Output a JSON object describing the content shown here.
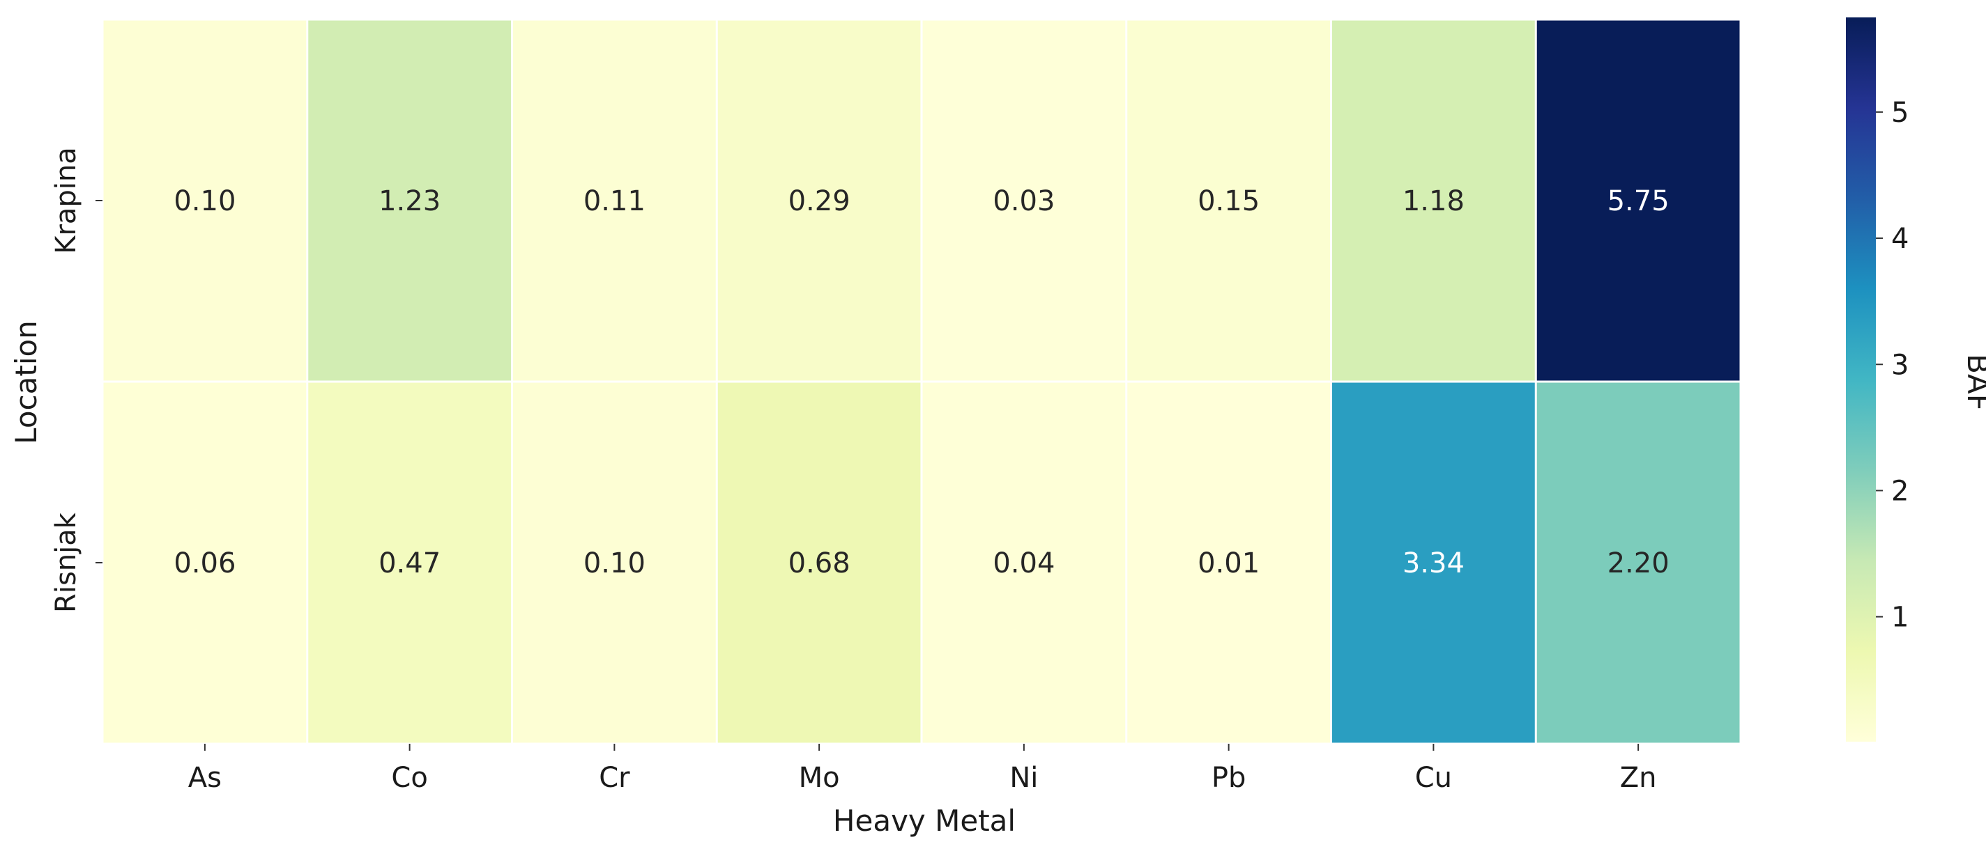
{
  "chart_data": {
    "type": "heatmap",
    "title": "",
    "xlabel": "Heavy Metal",
    "ylabel": "Location",
    "x_categories": [
      "As",
      "Co",
      "Cr",
      "Mo",
      "Ni",
      "Pb",
      "Cu",
      "Zn"
    ],
    "y_categories": [
      "Krapina",
      "Risnjak"
    ],
    "values": [
      [
        0.1,
        1.23,
        0.11,
        0.29,
        0.03,
        0.15,
        1.18,
        5.75
      ],
      [
        0.06,
        0.47,
        0.1,
        0.68,
        0.04,
        0.01,
        3.34,
        2.2
      ]
    ],
    "value_format_decimals": 2,
    "colormap": "YlGnBu",
    "colorbar": {
      "label": "BAF",
      "range": [
        0.01,
        5.75
      ],
      "ticks": [
        1,
        2,
        3,
        4,
        5
      ]
    },
    "legend": "none",
    "grid": false
  }
}
